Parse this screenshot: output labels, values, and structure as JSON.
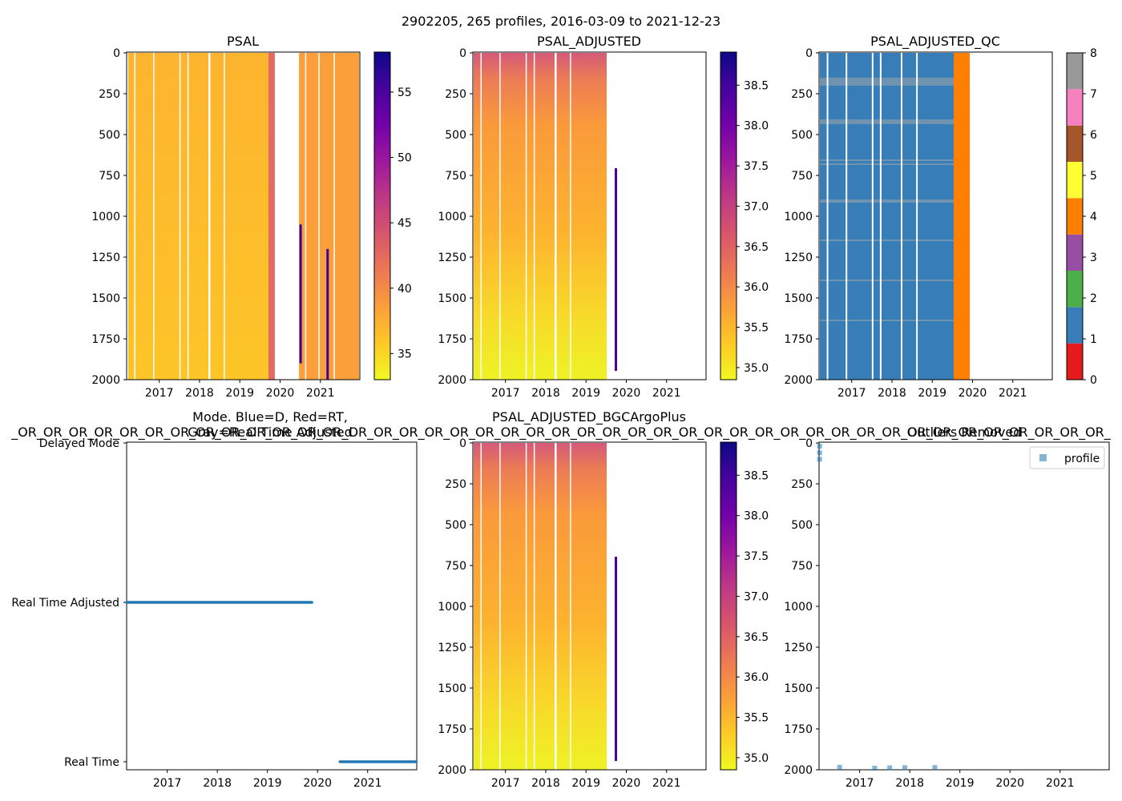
{
  "figure": {
    "suptitle": "2902205, 265 profiles, 2016-03-09 to 2021-12-23"
  },
  "colors": {
    "plasma": [
      "#f0f921",
      "#fdca26",
      "#fb9f3a",
      "#ed7953",
      "#d8576b",
      "#bd3786",
      "#9c179e",
      "#7201a8",
      "#46039f",
      "#0d0887"
    ],
    "qc": [
      "#e41a1c",
      "#377eb8",
      "#4daf4a",
      "#984ea3",
      "#ff7f00",
      "#ffff33",
      "#a65628",
      "#f781bf",
      "#999999"
    ],
    "mode_point": "#1f77b4",
    "outlier_point": "#1f77b4"
  },
  "panels": {
    "psal": {
      "title": "PSAL",
      "xticks": [
        "2017",
        "2018",
        "2019",
        "2020",
        "2021"
      ],
      "yticks": [
        "0",
        "250",
        "500",
        "750",
        "1000",
        "1250",
        "1500",
        "1750",
        "2000"
      ],
      "cbar_ticks": [
        "35",
        "40",
        "45",
        "50",
        "55"
      ]
    },
    "psal_adj": {
      "title": "PSAL_ADJUSTED",
      "xticks": [
        "2017",
        "2018",
        "2019",
        "2020",
        "2021"
      ],
      "yticks": [
        "0",
        "250",
        "500",
        "750",
        "1000",
        "1250",
        "1500",
        "1750",
        "2000"
      ],
      "cbar_ticks": [
        "35.0",
        "35.5",
        "36.0",
        "36.5",
        "37.0",
        "37.5",
        "38.0",
        "38.5"
      ]
    },
    "qc": {
      "title": "PSAL_ADJUSTED_QC",
      "xticks": [
        "2017",
        "2018",
        "2019",
        "2020",
        "2021"
      ],
      "yticks": [
        "0",
        "250",
        "500",
        "750",
        "1000",
        "1250",
        "1500",
        "1750",
        "2000"
      ],
      "cbar_ticks": [
        "0",
        "1",
        "2",
        "3",
        "4",
        "5",
        "6",
        "7",
        "8"
      ]
    },
    "mode": {
      "title_line1": "Mode. Blue=D, Red=RT,",
      "title_line2": "Gray=Real Time Adjusted",
      "overlay": "_OR_OR_OR_OR_OR_OR_OR_OR_OR_OR_OR_OR_OR_OR_OR_OR_OR_OR_OR_OR_OR_OR_OR_OR_OR_OR_OR_OR_OR_OR_OR_OR_OR_OR_OR_OR_OR_OR_OR_OR_OR_OR_OR_",
      "ylabels": [
        "Delayed Mode",
        "Real Time Adjusted",
        "Real Time"
      ],
      "xticks": [
        "2017",
        "2018",
        "2019",
        "2020",
        "2021"
      ]
    },
    "bgc": {
      "title": "PSAL_ADJUSTED_BGCArgoPlus",
      "xticks": [
        "2017",
        "2018",
        "2019",
        "2020",
        "2021"
      ],
      "yticks": [
        "0",
        "250",
        "500",
        "750",
        "1000",
        "1250",
        "1500",
        "1750",
        "2000"
      ],
      "cbar_ticks": [
        "35.0",
        "35.5",
        "36.0",
        "36.5",
        "37.0",
        "37.5",
        "38.0",
        "38.5"
      ]
    },
    "outliers": {
      "title": "Outliers Removed",
      "legend": "profile",
      "xticks": [
        "2017",
        "2018",
        "2019",
        "2020",
        "2021"
      ],
      "yticks": [
        "0",
        "250",
        "500",
        "750",
        "1000",
        "1250",
        "1500",
        "1750",
        "2000"
      ]
    }
  },
  "chart_data": [
    {
      "type": "heatmap",
      "title": "PSAL",
      "xlabel": "",
      "ylabel": "",
      "x_range": [
        "2016-03-09",
        "2021-12-23"
      ],
      "ylim": [
        2000,
        0
      ],
      "colorbar": {
        "cmap": "plasma",
        "range": [
          33,
          58
        ],
        "ticks": [
          35,
          40,
          45,
          50,
          55
        ]
      },
      "gaps_years": [
        [
          2016.38,
          2016.4
        ],
        [
          2016.85,
          2016.87
        ],
        [
          2017.5,
          2017.53
        ],
        [
          2017.7,
          2017.73
        ],
        [
          2018.22,
          2018.27
        ],
        [
          2018.6,
          2018.62
        ],
        [
          2019.87,
          2020.47
        ],
        [
          2020.62,
          2020.64
        ],
        [
          2020.95,
          2020.98
        ],
        [
          2021.33,
          2021.35
        ]
      ],
      "typical_value": 35.0,
      "spikes": [
        {
          "year": 2020.48,
          "depth_from": 1050,
          "depth_to": 1900,
          "value": 56
        },
        {
          "year": 2021.15,
          "depth_from": 1200,
          "depth_to": 2000,
          "value": 57
        }
      ]
    },
    {
      "type": "heatmap",
      "title": "PSAL_ADJUSTED",
      "xlabel": "",
      "ylabel": "",
      "x_range": [
        "2016-03-09",
        "2021-12-23"
      ],
      "ylim": [
        2000,
        0
      ],
      "colorbar": {
        "cmap": "plasma",
        "range": [
          34.85,
          38.9
        ],
        "ticks": [
          35.0,
          35.5,
          36.0,
          36.5,
          37.0,
          37.5,
          38.0,
          38.5
        ]
      },
      "data_end_year": 2019.5,
      "single_profile": {
        "year": 2019.75,
        "depth_from": 700,
        "depth_to": 1930,
        "value": 38.8
      }
    },
    {
      "type": "heatmap",
      "title": "PSAL_ADJUSTED_QC",
      "xlabel": "",
      "ylabel": "",
      "x_range": [
        "2016-03-09",
        "2021-12-23"
      ],
      "ylim": [
        2000,
        0
      ],
      "colorbar": {
        "categories": [
          0,
          1,
          2,
          3,
          4,
          5,
          6,
          7,
          8
        ]
      },
      "qc_segments": [
        {
          "from": 2016.19,
          "to": 2019.5,
          "qc": 1
        },
        {
          "from": 2019.5,
          "to": 2019.85,
          "qc": 4
        }
      ]
    },
    {
      "type": "scatter",
      "title": "Mode. Blue=D, Red=RT, Gray=Real Time Adjusted",
      "categories": [
        "Real Time",
        "Real Time Adjusted",
        "Delayed Mode"
      ],
      "series": [
        {
          "name": "Real Time Adjusted",
          "x_range": [
            2016.19,
            2019.9
          ],
          "y": "Real Time Adjusted"
        },
        {
          "name": "Real Time",
          "x_range": [
            2020.45,
            2021.98
          ],
          "y": "Real Time"
        }
      ]
    },
    {
      "type": "heatmap",
      "title": "PSAL_ADJUSTED_BGCArgoPlus",
      "xlabel": "",
      "ylabel": "",
      "x_range": [
        "2016-03-09",
        "2021-12-23"
      ],
      "ylim": [
        2000,
        0
      ],
      "colorbar": {
        "cmap": "plasma",
        "range": [
          34.85,
          38.9
        ],
        "ticks": [
          35.0,
          35.5,
          36.0,
          36.5,
          37.0,
          37.5,
          38.0,
          38.5
        ]
      }
    },
    {
      "type": "scatter",
      "title": "Outliers Removed",
      "legend": [
        "profile"
      ],
      "ylim": [
        2000,
        0
      ],
      "points": [
        {
          "x": 2016.2,
          "y": 20
        },
        {
          "x": 2016.2,
          "y": 60
        },
        {
          "x": 2016.2,
          "y": 100
        },
        {
          "x": 2016.6,
          "y": 1985
        },
        {
          "x": 2017.3,
          "y": 1990
        },
        {
          "x": 2017.6,
          "y": 1988
        },
        {
          "x": 2017.9,
          "y": 1987
        },
        {
          "x": 2018.5,
          "y": 1986
        }
      ]
    }
  ]
}
